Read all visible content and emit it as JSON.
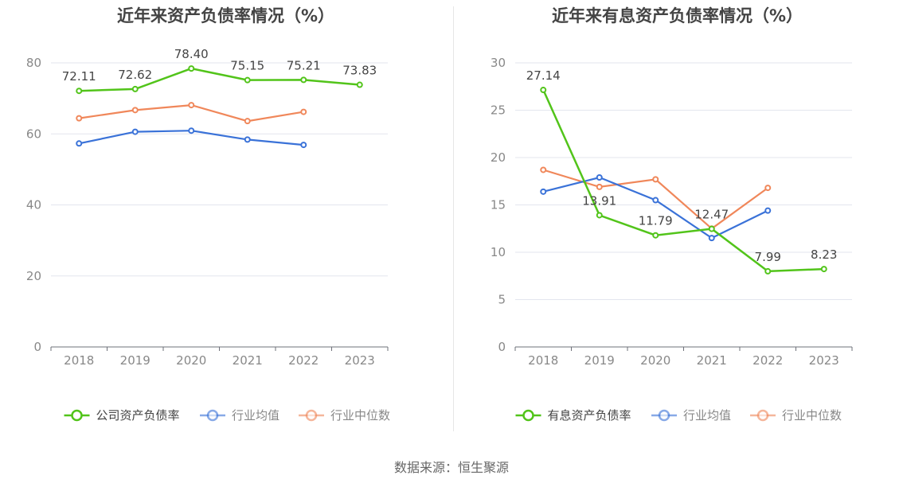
{
  "chart_data": [
    {
      "type": "line",
      "title": "近年来资产负债率情况（%）",
      "categories": [
        "2018",
        "2019",
        "2020",
        "2021",
        "2022",
        "2023"
      ],
      "ylim": [
        0,
        80
      ],
      "yticks": [
        0,
        20,
        40,
        60,
        80
      ],
      "grid": true,
      "legend_position": "bottom",
      "series": [
        {
          "name": "公司资产负债率",
          "color": "#52c41a",
          "values": [
            72.11,
            72.62,
            78.4,
            75.15,
            75.21,
            73.83
          ],
          "labels": true
        },
        {
          "name": "行业均值",
          "color": "#3a72d8",
          "values": [
            57.3,
            60.6,
            60.9,
            58.4,
            56.9,
            null
          ],
          "labels": false
        },
        {
          "name": "行业中位数",
          "color": "#f0875a",
          "values": [
            64.4,
            66.7,
            68.1,
            63.6,
            66.2,
            null
          ],
          "labels": false
        }
      ]
    },
    {
      "type": "line",
      "title": "近年来有息资产负债率情况（%）",
      "categories": [
        "2018",
        "2019",
        "2020",
        "2021",
        "2022",
        "2023"
      ],
      "ylim": [
        0,
        30
      ],
      "yticks": [
        0,
        5,
        10,
        15,
        20,
        25,
        30
      ],
      "grid": true,
      "legend_position": "bottom",
      "series": [
        {
          "name": "有息资产负债率",
          "color": "#52c41a",
          "values": [
            27.14,
            13.91,
            11.79,
            12.47,
            7.99,
            8.23
          ],
          "labels": true
        },
        {
          "name": "行业均值",
          "color": "#3a72d8",
          "values": [
            16.4,
            17.9,
            15.5,
            11.5,
            14.4,
            null
          ],
          "labels": false
        },
        {
          "name": "行业中位数",
          "color": "#f0875a",
          "values": [
            18.7,
            16.9,
            17.7,
            12.5,
            16.8,
            null
          ],
          "labels": false
        }
      ]
    }
  ],
  "source": "数据来源：恒生聚源"
}
